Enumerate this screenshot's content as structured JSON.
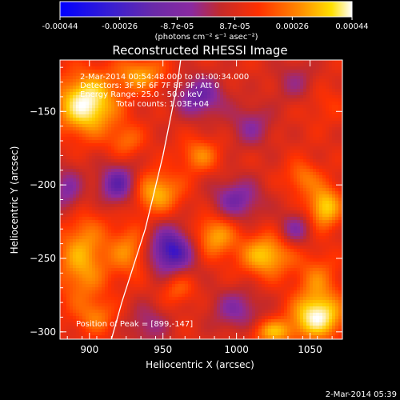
{
  "colorbar": {
    "tick_labels": [
      "-0.00044",
      "-0.00026",
      "-8.7e-05",
      "8.7e-05",
      "0.00026",
      "0.00044"
    ],
    "tick_values": [
      -0.00044,
      -0.00026,
      -8.7e-05,
      8.7e-05,
      0.00026,
      0.00044
    ],
    "range": [
      -0.00044,
      0.00044
    ],
    "unit_label": "(photons cm⁻² s⁻¹ asec⁻²)",
    "colormap": [
      "#0000ff",
      "#5a1fa8",
      "#8a2aa0",
      "#c42a2a",
      "#ff3000",
      "#ff7a00",
      "#ffd000",
      "#ffffff"
    ]
  },
  "chart_data": {
    "type": "heatmap",
    "title": "Reconstructed RHESSI Image",
    "xlabel": "Heliocentric X (arcsec)",
    "ylabel": "Heliocentric Y (arcsec)",
    "xlim": [
      880,
      1072
    ],
    "ylim": [
      -305,
      -115
    ],
    "xticks": [
      900,
      950,
      1000,
      1050
    ],
    "xtick_labels": [
      "900",
      "950",
      "1000",
      "1050"
    ],
    "yticks": [
      -150,
      -200,
      -250,
      -300
    ],
    "ytick_labels": [
      "−150",
      "−200",
      "−250",
      "−300"
    ],
    "annotations": [
      "2-Mar-2014 00:54:48.000 to 01:00:34.000",
      "Detectors: 3F 5F 6F 7F 8F 9F, Att 0",
      "Energy Range: 25.0 - 50.0 keV",
      "Total counts: 1.03E+04"
    ],
    "peak_label": "Position of Peak = [899,-147]",
    "peak_position": [
      899,
      -147
    ],
    "limb_curve": [
      [
        915,
        -305
      ],
      [
        922,
        -280
      ],
      [
        930,
        -255
      ],
      [
        938,
        -230
      ],
      [
        944,
        -205
      ],
      [
        950,
        -180
      ],
      [
        955,
        -155
      ],
      [
        960,
        -130
      ],
      [
        962,
        -115
      ]
    ],
    "blobs": [
      {
        "x": 898,
        "y": -145,
        "sx": 14,
        "sy": 14,
        "v": 1.0
      },
      {
        "x": 935,
        "y": -125,
        "sx": 12,
        "sy": 8,
        "v": 0.55
      },
      {
        "x": 945,
        "y": -205,
        "sx": 12,
        "sy": 10,
        "v": 0.65
      },
      {
        "x": 925,
        "y": -170,
        "sx": 8,
        "sy": 8,
        "v": 0.35
      },
      {
        "x": 975,
        "y": -180,
        "sx": 9,
        "sy": 8,
        "v": 0.45
      },
      {
        "x": 1045,
        "y": -195,
        "sx": 8,
        "sy": 8,
        "v": 0.4
      },
      {
        "x": 1060,
        "y": -215,
        "sx": 8,
        "sy": 10,
        "v": 0.75
      },
      {
        "x": 895,
        "y": -250,
        "sx": 12,
        "sy": 22,
        "v": 0.6
      },
      {
        "x": 928,
        "y": -245,
        "sx": 10,
        "sy": 12,
        "v": 0.5
      },
      {
        "x": 985,
        "y": -235,
        "sx": 10,
        "sy": 10,
        "v": 0.6
      },
      {
        "x": 1020,
        "y": -248,
        "sx": 12,
        "sy": 10,
        "v": 0.7
      },
      {
        "x": 1055,
        "y": -265,
        "sx": 10,
        "sy": 12,
        "v": 0.4
      },
      {
        "x": 960,
        "y": -270,
        "sx": 8,
        "sy": 8,
        "v": 0.35
      },
      {
        "x": 1055,
        "y": -290,
        "sx": 12,
        "sy": 10,
        "v": 0.95
      },
      {
        "x": 1025,
        "y": -300,
        "sx": 10,
        "sy": 6,
        "v": 0.6
      },
      {
        "x": 905,
        "y": -290,
        "sx": 9,
        "sy": 8,
        "v": 0.35
      },
      {
        "x": 1060,
        "y": -145,
        "sx": 10,
        "sy": 10,
        "v": 0.15
      },
      {
        "x": 955,
        "y": -245,
        "sx": 12,
        "sy": 12,
        "v": -0.85
      },
      {
        "x": 920,
        "y": -200,
        "sx": 10,
        "sy": 10,
        "v": -0.7
      },
      {
        "x": 975,
        "y": -140,
        "sx": 12,
        "sy": 10,
        "v": -0.6
      },
      {
        "x": 1000,
        "y": -210,
        "sx": 12,
        "sy": 10,
        "v": -0.55
      },
      {
        "x": 1010,
        "y": -160,
        "sx": 10,
        "sy": 10,
        "v": -0.4
      },
      {
        "x": 1040,
        "y": -230,
        "sx": 8,
        "sy": 8,
        "v": -0.45
      },
      {
        "x": 1000,
        "y": -285,
        "sx": 12,
        "sy": 10,
        "v": -0.45
      },
      {
        "x": 885,
        "y": -205,
        "sx": 8,
        "sy": 12,
        "v": -0.5
      },
      {
        "x": 940,
        "y": -295,
        "sx": 10,
        "sy": 10,
        "v": -0.35
      },
      {
        "x": 1040,
        "y": -130,
        "sx": 10,
        "sy": 10,
        "v": -0.3
      }
    ]
  },
  "footer": {
    "timestamp": "2-Mar-2014 05:39"
  }
}
